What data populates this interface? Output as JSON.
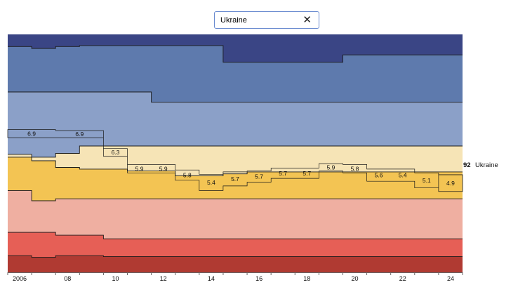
{
  "search": {
    "value": "Ukraine",
    "clear_icon": "close-icon"
  },
  "chart_data": {
    "type": "area",
    "subtype": "stepped stacked area (rank bands) with highlighted country trace",
    "x": [
      2006,
      2007,
      2008,
      2009,
      2010,
      2011,
      2012,
      2013,
      2014,
      2015,
      2016,
      2017,
      2018,
      2019,
      2020,
      2021,
      2022,
      2023,
      2024
    ],
    "x_tick_labels": [
      "2006",
      "08",
      "10",
      "12",
      "14",
      "16",
      "18",
      "20",
      "22",
      "24"
    ],
    "ylim": [
      0,
      100
    ],
    "band_colors": [
      "#3a4585",
      "#5e7aad",
      "#8ba0c8",
      "#f6e4b6",
      "#f3c453",
      "#efafa1",
      "#e65f56",
      "#b03a32"
    ],
    "boundaries": [
      [
        94.9,
        94.1,
        94.9,
        95.3,
        95.3,
        95.3,
        95.3,
        95.3,
        95.3,
        88.3,
        88.3,
        88.3,
        88.3,
        88.3,
        91.4,
        91.4,
        91.4,
        91.4,
        91.4
      ],
      [
        75.8,
        75.8,
        75.8,
        75.8,
        75.8,
        75.8,
        71.5,
        71.5,
        71.5,
        71.5,
        71.5,
        71.5,
        71.5,
        71.5,
        71.5,
        71.5,
        71.5,
        71.5,
        71.5
      ],
      [
        49.6,
        48.4,
        50.0,
        53.1,
        53.1,
        53.1,
        53.1,
        53.1,
        53.1,
        53.1,
        53.1,
        53.1,
        53.1,
        53.1,
        53.1,
        53.1,
        53.1,
        53.1,
        53.1
      ],
      [
        48.4,
        46.9,
        44.1,
        43.4,
        43.4,
        42.6,
        42.6,
        40.6,
        40.6,
        41.4,
        42.2,
        42.2,
        42.2,
        42.2,
        42.2,
        42.2,
        42.2,
        42.2,
        42.2
      ],
      [
        34.4,
        30.1,
        30.9,
        30.9,
        30.9,
        30.9,
        30.9,
        30.9,
        30.9,
        30.9,
        30.9,
        30.9,
        30.9,
        30.9,
        30.9,
        30.9,
        30.9,
        30.9,
        30.9
      ],
      [
        16.8,
        16.8,
        15.6,
        15.6,
        14.1,
        14.1,
        14.1,
        14.1,
        14.1,
        14.1,
        14.1,
        14.1,
        14.1,
        14.1,
        14.1,
        14.1,
        14.1,
        14.1,
        14.1
      ],
      [
        7.0,
        6.3,
        7.0,
        7.0,
        6.6,
        6.6,
        6.6,
        6.6,
        6.6,
        6.6,
        6.6,
        6.6,
        6.6,
        6.6,
        6.6,
        6.6,
        6.6,
        6.6,
        6.6
      ]
    ],
    "highlight": {
      "name": "Ukraine",
      "end_rank": "92",
      "scores": [
        "6.9",
        "6.9",
        "6.3",
        "5.9",
        "5.9",
        "5.8",
        "5.4",
        "5.7",
        "5.7",
        "5.7",
        "5.7",
        "5.9",
        "5.8",
        "5.6",
        "5.4",
        "5.1",
        "4.9"
      ],
      "years": [
        2006,
        2008,
        2010,
        2011,
        2012,
        2013,
        2014,
        2015,
        2016,
        2017,
        2018,
        2019,
        2020,
        2021,
        2022,
        2023,
        2024
      ],
      "upper": [
        60.0,
        59.6,
        52.0,
        45.3,
        45.3,
        43.0,
        41.2,
        42.2,
        42.6,
        43.8,
        43.8,
        45.7,
        45.3,
        43.4,
        43.4,
        41.8,
        41.0
      ],
      "lower": [
        56.6,
        56.6,
        48.8,
        41.8,
        41.8,
        38.7,
        34.4,
        36.3,
        37.9,
        39.5,
        39.5,
        42.6,
        41.8,
        38.3,
        38.3,
        35.5,
        34.0
      ]
    },
    "title": "",
    "xlabel": "",
    "ylabel": "",
    "grid": false,
    "legend": "none"
  }
}
